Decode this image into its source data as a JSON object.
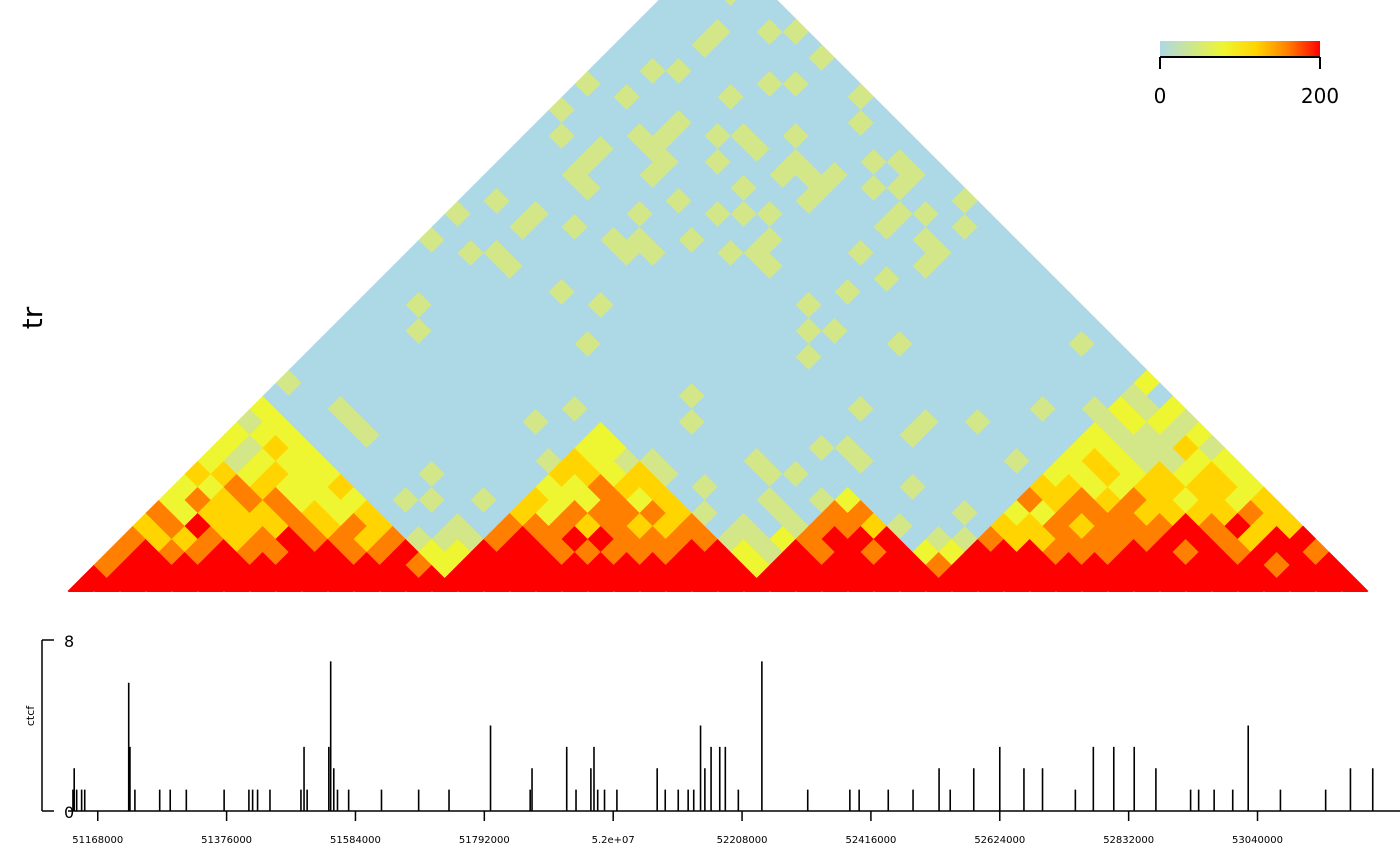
{
  "chart_data": [
    {
      "type": "heatmap",
      "ylabel": "tr",
      "layout": "triangular contact map (upper triangle rotated 45 degrees)",
      "colorbar": {
        "min_label": "0",
        "max_label": "200",
        "range": [
          0,
          200
        ],
        "colors": [
          "#add8e6",
          "#eef531",
          "#ffd400",
          "#ff7f00",
          "#ff0000"
        ],
        "placement": "top-right"
      },
      "bins_visible": 50,
      "diagonal_pattern_note": "strong red/orange contacts near the diagonal, yellow mid-range domains, light blue at long range",
      "domains": [
        {
          "start_bin": 0,
          "end_bin": 14,
          "intensity": "high"
        },
        {
          "start_bin": 14,
          "end_bin": 26,
          "intensity": "high"
        },
        {
          "start_bin": 26,
          "end_bin": 33,
          "intensity": "medium"
        },
        {
          "start_bin": 33,
          "end_bin": 50,
          "intensity": "high"
        }
      ]
    },
    {
      "type": "bar",
      "ylabel": "ctcf",
      "ylim": [
        0,
        8
      ],
      "y_tick_labels": [
        "0",
        "8"
      ],
      "x_tick_labels": [
        "51168000",
        "51376000",
        "51584000",
        "51792000",
        "5.2e+07",
        "52208000",
        "52416000",
        "52624000",
        "52832000",
        "53040000"
      ],
      "x_ticks": [
        51168000,
        51376000,
        51584000,
        51792000,
        52000000,
        52208000,
        52416000,
        52624000,
        52832000,
        53040000
      ],
      "xlim": [
        51120000,
        53270000
      ],
      "peaks": [
        {
          "x": 51128000,
          "y": 1
        },
        {
          "x": 51130000,
          "y": 2
        },
        {
          "x": 51134000,
          "y": 1
        },
        {
          "x": 51142000,
          "y": 1
        },
        {
          "x": 51147000,
          "y": 1
        },
        {
          "x": 51218000,
          "y": 6
        },
        {
          "x": 51220000,
          "y": 3
        },
        {
          "x": 51228000,
          "y": 1
        },
        {
          "x": 51268000,
          "y": 1
        },
        {
          "x": 51285000,
          "y": 1
        },
        {
          "x": 51311000,
          "y": 1
        },
        {
          "x": 51372000,
          "y": 1
        },
        {
          "x": 51412000,
          "y": 1
        },
        {
          "x": 51418000,
          "y": 1
        },
        {
          "x": 51426000,
          "y": 1
        },
        {
          "x": 51446000,
          "y": 1
        },
        {
          "x": 51496000,
          "y": 1
        },
        {
          "x": 51501000,
          "y": 3
        },
        {
          "x": 51506000,
          "y": 1
        },
        {
          "x": 51541000,
          "y": 3
        },
        {
          "x": 51544000,
          "y": 7
        },
        {
          "x": 51549000,
          "y": 2
        },
        {
          "x": 51555000,
          "y": 1
        },
        {
          "x": 51573000,
          "y": 1
        },
        {
          "x": 51626000,
          "y": 1
        },
        {
          "x": 51686000,
          "y": 1
        },
        {
          "x": 51735000,
          "y": 1
        },
        {
          "x": 51802000,
          "y": 4
        },
        {
          "x": 51866000,
          "y": 1
        },
        {
          "x": 51869000,
          "y": 2
        },
        {
          "x": 51925000,
          "y": 3
        },
        {
          "x": 51940000,
          "y": 1
        },
        {
          "x": 51964000,
          "y": 2
        },
        {
          "x": 51969000,
          "y": 3
        },
        {
          "x": 51975000,
          "y": 1
        },
        {
          "x": 51986000,
          "y": 1
        },
        {
          "x": 52006000,
          "y": 1
        },
        {
          "x": 52071000,
          "y": 2
        },
        {
          "x": 52084000,
          "y": 1
        },
        {
          "x": 52105000,
          "y": 1
        },
        {
          "x": 52121000,
          "y": 1
        },
        {
          "x": 52130000,
          "y": 1
        },
        {
          "x": 52141000,
          "y": 4
        },
        {
          "x": 52148000,
          "y": 2
        },
        {
          "x": 52158000,
          "y": 3
        },
        {
          "x": 52172000,
          "y": 3
        },
        {
          "x": 52181000,
          "y": 3
        },
        {
          "x": 52202000,
          "y": 1
        },
        {
          "x": 52240000,
          "y": 7
        },
        {
          "x": 52314000,
          "y": 1
        },
        {
          "x": 52382000,
          "y": 1
        },
        {
          "x": 52397000,
          "y": 1
        },
        {
          "x": 52444000,
          "y": 1
        },
        {
          "x": 52484000,
          "y": 1
        },
        {
          "x": 52526000,
          "y": 2
        },
        {
          "x": 52544000,
          "y": 1
        },
        {
          "x": 52582000,
          "y": 2
        },
        {
          "x": 52624000,
          "y": 3
        },
        {
          "x": 52663000,
          "y": 2
        },
        {
          "x": 52693000,
          "y": 2
        },
        {
          "x": 52746000,
          "y": 1
        },
        {
          "x": 52775000,
          "y": 3
        },
        {
          "x": 52808000,
          "y": 3
        },
        {
          "x": 52841000,
          "y": 3
        },
        {
          "x": 52876000,
          "y": 2
        },
        {
          "x": 52932000,
          "y": 1
        },
        {
          "x": 52945000,
          "y": 1
        },
        {
          "x": 52970000,
          "y": 1
        },
        {
          "x": 53000000,
          "y": 1
        },
        {
          "x": 53025000,
          "y": 4
        },
        {
          "x": 53077000,
          "y": 1
        },
        {
          "x": 53150000,
          "y": 1
        },
        {
          "x": 53190000,
          "y": 2
        },
        {
          "x": 53226000,
          "y": 2
        }
      ]
    }
  ]
}
